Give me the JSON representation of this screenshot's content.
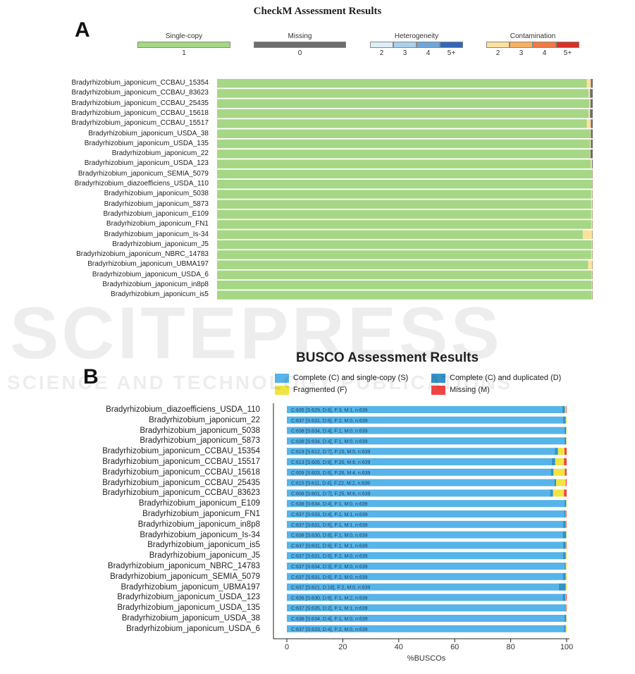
{
  "chart_data": [
    {
      "type": "bar",
      "title": "CheckM Assessment Results",
      "panel": "A",
      "legend": {
        "single_copy": {
          "label": "Single-copy",
          "tick": "1",
          "color": "#a6d785"
        },
        "missing": {
          "label": "Missing",
          "tick": "0",
          "color": "#6d6d6d"
        },
        "heterogeneity": {
          "label": "Heterogeneity",
          "ticks": [
            "2",
            "3",
            "4",
            "5+"
          ],
          "colors": [
            "#ddeef8",
            "#a9d0ea",
            "#6fa6d8",
            "#3366b8"
          ]
        },
        "contamination": {
          "label": "Contamination",
          "ticks": [
            "2",
            "3",
            "4",
            "5+"
          ],
          "colors": [
            "#fde29c",
            "#f8b060",
            "#ef7b45",
            "#d73027"
          ]
        }
      },
      "categories": [
        "Bradyrhizobium_japonicum_CCBAU_15354",
        "Bradyrhizobium_japonicum_CCBAU_83623",
        "Bradyrhizobium_japonicum_CCBAU_25435",
        "Bradyrhizobium_japonicum_CCBAU_15618",
        "Bradyrhizobium_japonicum_CCBAU_15517",
        "Bradyrhizobium_japonicum_USDA_38",
        "Bradyrhizobium_japonicum_USDA_135",
        "Bradyrhizobium_japonicum_22",
        "Bradyrhizobium_japonicum_USDA_123",
        "Bradyrhizobium_japonicum_SEMIA_5079",
        "Bradyrhizobium_diazoefficiens_USDA_110",
        "Bradyrhizobium_japonicum_5038",
        "Bradyrhizobium_japonicum_5873",
        "Bradyrhizobium_japonicum_E109",
        "Bradyrhizobium_japonicum_FN1",
        "Bradyrhizobium_japonicum_Is-34",
        "Bradyrhizobium_japonicum_J5",
        "Bradyrhizobium_japonicum_NBRC_14783",
        "Bradyrhizobium_japonicum_UBMA197",
        "Bradyrhizobium_japonicum_USDA_6",
        "Bradyrhizobium_japonicum_in8p8",
        "Bradyrhizobium_japonicum_is5"
      ],
      "series": [
        {
          "key": "single",
          "values": [
            98.4,
            98.9,
            99.1,
            98.9,
            98.4,
            99.4,
            99.3,
            99.3,
            99.5,
            99.8,
            99.8,
            99.6,
            99.6,
            99.6,
            99.6,
            97.4,
            99.7,
            99.6,
            98.8,
            99.7,
            99.7,
            99.7
          ]
        },
        {
          "key": "contamination",
          "values": [
            1.1,
            0.4,
            0.3,
            0.4,
            1.1,
            0.1,
            0.2,
            0.1,
            0.3,
            0.1,
            0.1,
            0.3,
            0.3,
            0.3,
            0.3,
            2.5,
            0.2,
            0.3,
            1.1,
            0.2,
            0.2,
            0.2
          ]
        },
        {
          "key": "missing",
          "values": [
            0.5,
            0.7,
            0.6,
            0.7,
            0.5,
            0.5,
            0.5,
            0.6,
            0.2,
            0.1,
            0.1,
            0.1,
            0.1,
            0.1,
            0.1,
            0.1,
            0.1,
            0.1,
            0.1,
            0.1,
            0.1,
            0.1
          ]
        }
      ]
    },
    {
      "type": "bar",
      "title": "BUSCO Assessment Results",
      "panel": "B",
      "xlabel": "%BUSCOs",
      "xlim": [
        0,
        100
      ],
      "xticks": [
        "0",
        "20",
        "40",
        "60",
        "80",
        "100"
      ],
      "legend": [
        {
          "label": "Complete (C) and single-copy (S)",
          "color": "#56b4e9"
        },
        {
          "label": "Complete (C) and duplicated (D)",
          "color": "#3492c7"
        },
        {
          "label": "Fragmented (F)",
          "color": "#f0e442"
        },
        {
          "label": "Missing (M)",
          "color": "#f04442"
        }
      ],
      "categories": [
        "Bradyrhizobium_diazoefficiens_USDA_110",
        "Bradyrhizobium_japonicum_22",
        "Bradyrhizobium_japonicum_5038",
        "Bradyrhizobium_japonicum_5873",
        "Bradyrhizobium_japonicum_CCBAU_15354",
        "Bradyrhizobium_japonicum_CCBAU_15517",
        "Bradyrhizobium_japonicum_CCBAU_15618",
        "Bradyrhizobium_japonicum_CCBAU_25435",
        "Bradyrhizobium_japonicum_CCBAU_83623",
        "Bradyrhizobium_japonicum_E109",
        "Bradyrhizobium_japonicum_FN1",
        "Bradyrhizobium_japonicum_in8p8",
        "Bradyrhizobium_japonicum_Is-34",
        "Bradyrhizobium_japonicum_is5",
        "Bradyrhizobium_japonicum_J5",
        "Bradyrhizobium_japonicum_NBRC_14783",
        "Bradyrhizobium_japonicum_SEMIA_5079",
        "Bradyrhizobium_japonicum_UBMA197",
        "Bradyrhizobium_japonicum_USDA_123",
        "Bradyrhizobium_japonicum_USDA_135",
        "Bradyrhizobium_japonicum_USDA_38",
        "Bradyrhizobium_japonicum_USDA_6"
      ],
      "bar_labels": [
        "C:635 [S:629, D:6], F:3, M:1, n:639",
        "C:637 [S:631, D:6], F:2, M:0, n:639",
        "C:638 [S:634, D:4], F:1, M:0, n:639",
        "C:638 [S:634, D:4], F:1, M:0, n:639",
        "C:619 [S:612, D:7], F:15, M:5, n:639",
        "C:613 [S:605, D:8], F:20, M:6, n:639",
        "C:609 [S:603, D:6], F:26, M:4, n:639",
        "C:615 [S:611, D:4], F:22, M:2, n:639",
        "C:608 [S:601, D:7], F:25, M:6, n:639",
        "C:638 [S:634, D:4], F:1, M:0, n:639",
        "C:637 [S:633, D:4], F:1, M:1, n:639",
        "C:637 [S:631, D:6], F:1, M:1, n:639",
        "C:638 [S:630, D:8], F:1, M:0, n:639",
        "C:637 [S:631, D:6], F:1, M:1, n:639",
        "C:637 [S:631, D:6], F:2, M:0, n:639",
        "C:637 [S:634, D:3], F:2, M:0, n:639",
        "C:637 [S:631, D:6], F:2, M:0, n:639",
        "C:637 [S:621, D:16], F:2, M:0, n:639",
        "C:636 [S:630, D:6], F:1, M:2, n:639",
        "C:637 [S:635, D:2], F:1, M:1, n:639",
        "C:638 [S:634, D:4], F:1, M:0, n:639",
        "C:637 [S:633, D:4], F:2, M:0, n:639"
      ],
      "series": [
        {
          "name": "Complete (C) and single-copy (S)",
          "values": [
            629,
            631,
            634,
            634,
            612,
            605,
            603,
            611,
            601,
            634,
            633,
            631,
            630,
            631,
            631,
            634,
            631,
            621,
            630,
            635,
            634,
            633
          ]
        },
        {
          "name": "Complete (C) and duplicated (D)",
          "values": [
            6,
            6,
            4,
            4,
            7,
            8,
            6,
            4,
            7,
            4,
            4,
            6,
            8,
            6,
            6,
            3,
            6,
            16,
            6,
            2,
            4,
            4
          ]
        },
        {
          "name": "Fragmented (F)",
          "values": [
            3,
            2,
            1,
            1,
            15,
            20,
            26,
            22,
            25,
            1,
            1,
            1,
            1,
            1,
            2,
            2,
            2,
            2,
            1,
            1,
            1,
            2
          ]
        },
        {
          "name": "Missing (M)",
          "values": [
            1,
            0,
            0,
            0,
            5,
            6,
            4,
            2,
            6,
            0,
            1,
            1,
            0,
            1,
            0,
            0,
            0,
            0,
            2,
            1,
            0,
            0
          ]
        }
      ],
      "total": 639
    }
  ],
  "watermark": {
    "line1": "SCITEPRESS",
    "line2": "SCIENCE AND TECHNOLOGY PUBLICATIONS"
  }
}
